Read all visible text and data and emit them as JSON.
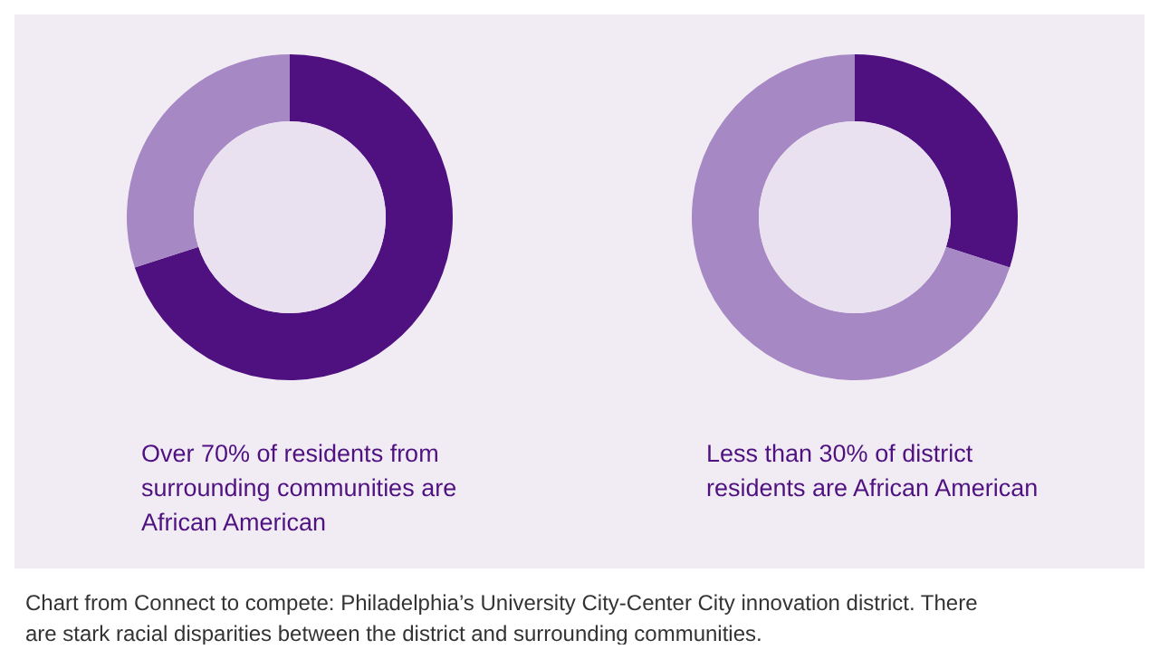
{
  "chart_data": [
    {
      "type": "donut",
      "categories": [
        null,
        null
      ],
      "values": [
        70,
        30
      ],
      "colors": [
        "#4f1180",
        "#a688c4"
      ],
      "annotations": [
        "Over 70% of residents from surrounding communities are African American"
      ]
    },
    {
      "type": "donut",
      "categories": [
        null,
        null
      ],
      "values": [
        30,
        70
      ],
      "colors": [
        "#4f1180",
        "#a688c4"
      ],
      "annotations": [
        "Less than 30% of district residents are African American"
      ]
    },
    {
      "type": "other",
      "annotations": [
        "Chart from Connect to compete: Philadelphia’s University City-Center City innovation district. There are stark racial disparities between the district and surrounding communities."
      ]
    }
  ]
}
